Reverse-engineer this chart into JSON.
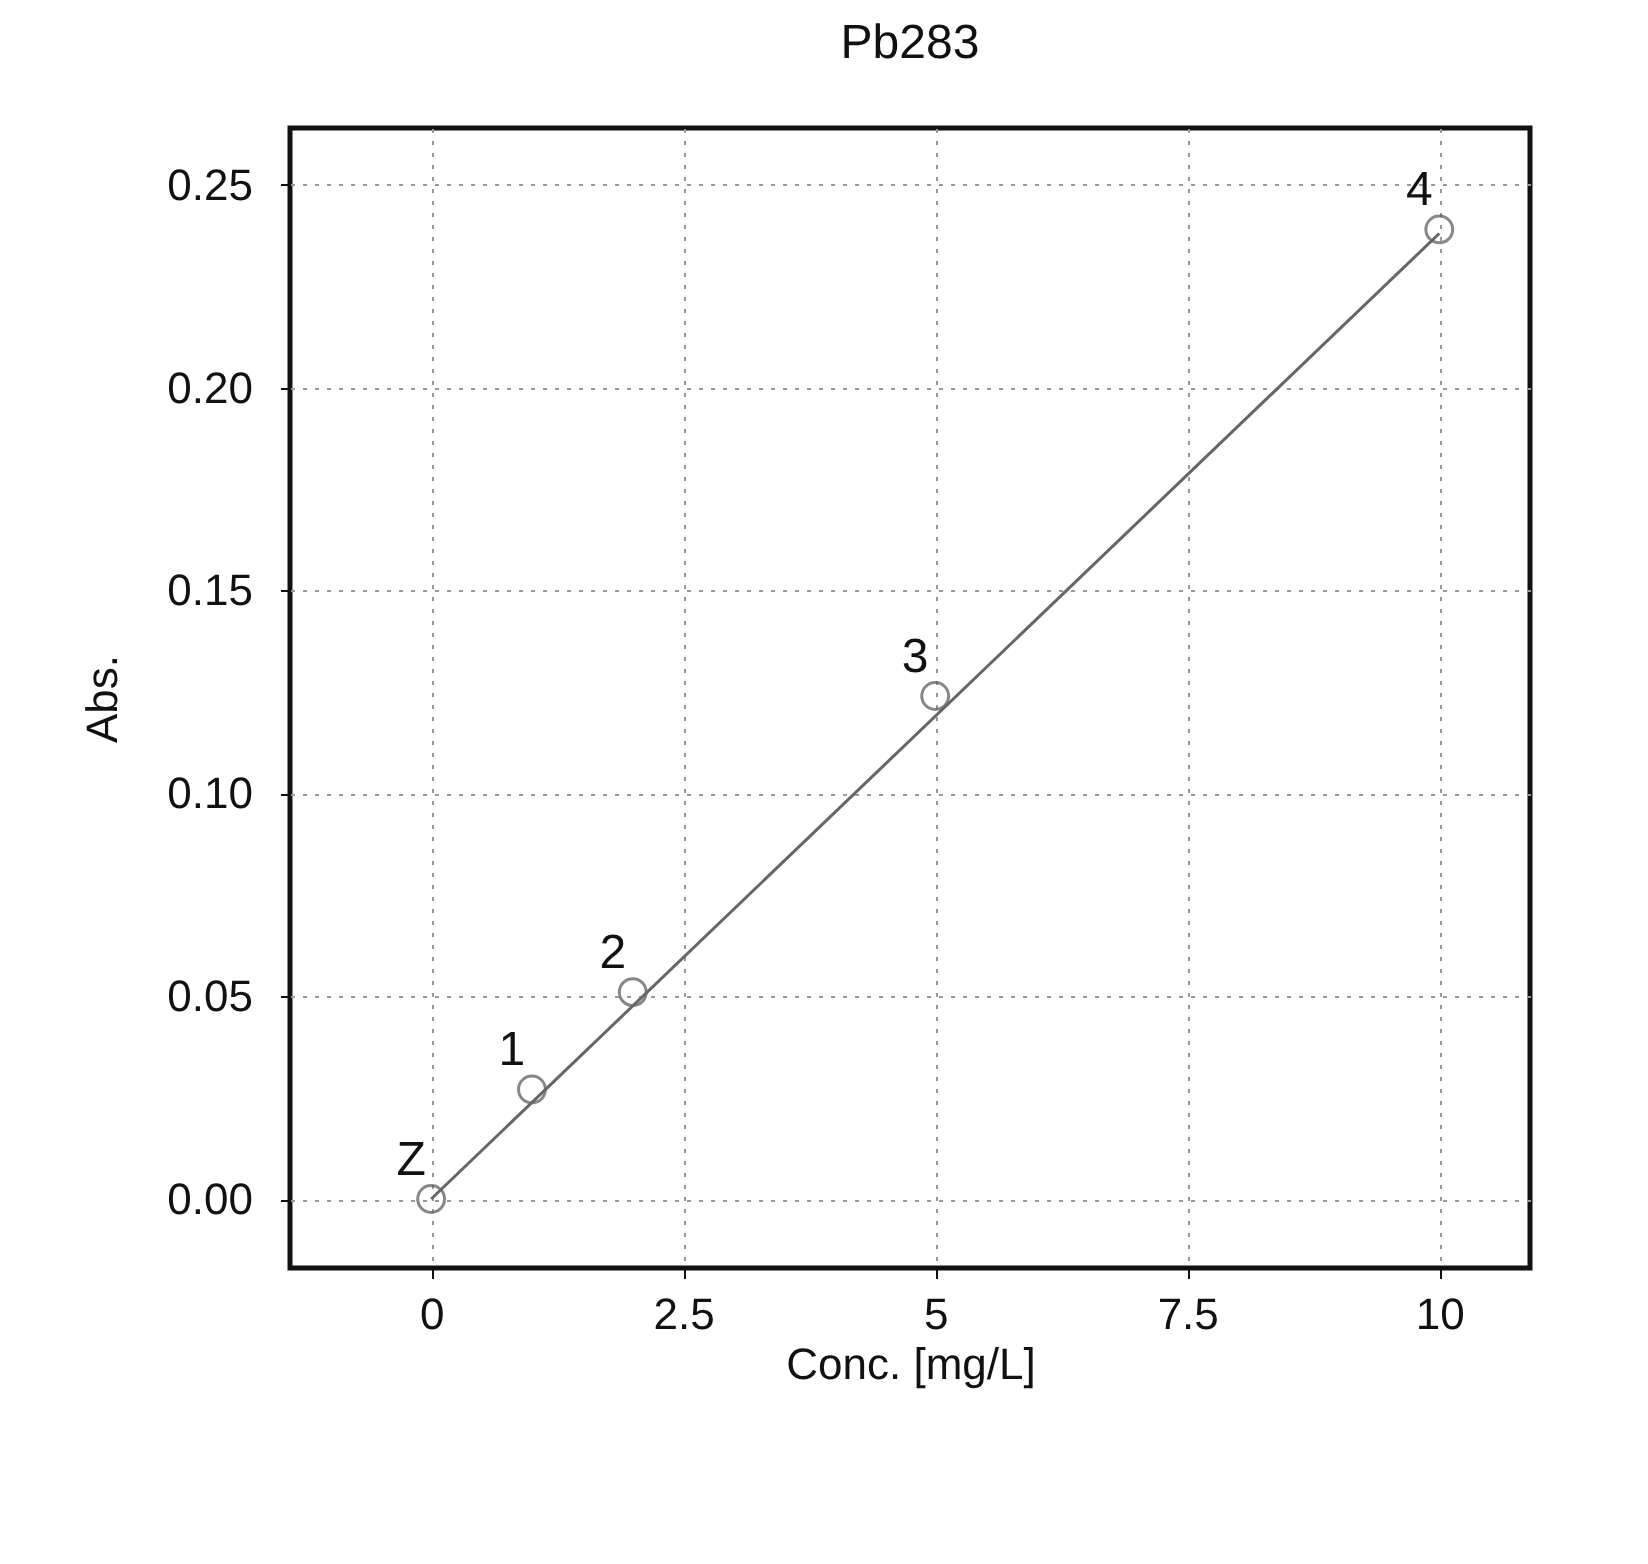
{
  "chart_data": {
    "type": "scatter",
    "title": "Pb283",
    "xlabel": "Conc. [mg/L]",
    "ylabel": "Abs.",
    "xlim": [
      -1.4,
      10.9
    ],
    "xticks": [
      0,
      2.5,
      5,
      7.5,
      10
    ],
    "ylim": [
      -0.017,
      0.264
    ],
    "yticks": [
      {
        "value": 0,
        "label": "0.00"
      },
      0.05,
      {
        "value": 0.1,
        "label": "0.10"
      },
      0.15,
      {
        "value": 0.2,
        "label": "0.20"
      },
      0.25
    ],
    "grid": true,
    "series": [
      {
        "marker": "circle",
        "color": "#555555",
        "x": [
          0,
          1,
          2,
          5,
          10
        ],
        "values": [
          0.0,
          0.027,
          0.051,
          0.124,
          0.239
        ]
      },
      {
        "type": "line",
        "color": "#666666",
        "line_style": "solid",
        "x": [
          0,
          10
        ],
        "values": [
          0.0,
          0.238
        ]
      }
    ],
    "annotations": [
      {
        "text": "Z",
        "x": 0,
        "y": 0.0
      },
      {
        "text": "1",
        "x": 1,
        "y": 0.027
      },
      {
        "text": "2",
        "x": 2,
        "y": 0.051
      },
      {
        "text": "3",
        "x": 5,
        "y": 0.124
      },
      {
        "text": "4",
        "x": 10,
        "y": 0.239
      }
    ]
  }
}
